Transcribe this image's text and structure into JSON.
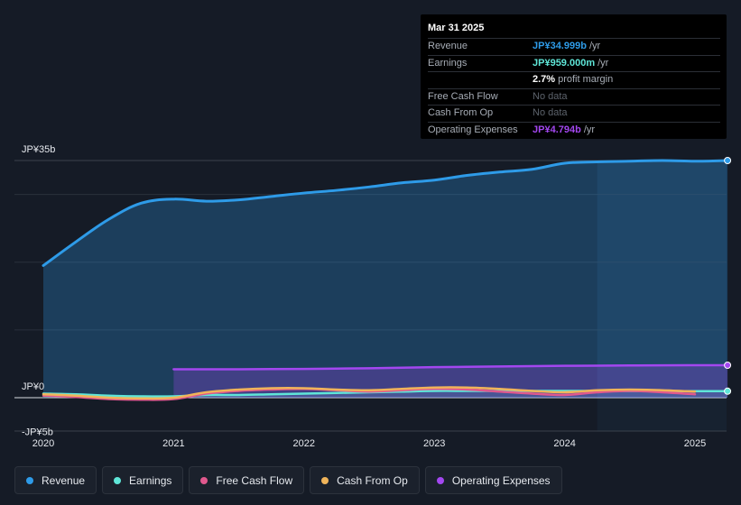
{
  "colors": {
    "background": "#151b26",
    "revenue": "#2e9be8",
    "earnings": "#5fe6d8",
    "free_cash_flow": "#e0588d",
    "cash_from_op": "#f0b45a",
    "operating_expenses": "#a347f0",
    "grid": "#2a313c",
    "zero_line": "#d9dde3"
  },
  "tooltip": {
    "date": "Mar 31 2025",
    "rows": [
      {
        "label": "Revenue",
        "value": "JP¥34.999b",
        "unit": "/yr",
        "color": "#2e9be8"
      },
      {
        "label": "Earnings",
        "value": "JP¥959.000m",
        "unit": "/yr",
        "color": "#5fe6d8"
      },
      {
        "label": "",
        "value": "2.7%",
        "unit": "profit margin",
        "color": "#ffffff"
      },
      {
        "label": "Free Cash Flow",
        "value": "No data",
        "unit": "",
        "color": ""
      },
      {
        "label": "Cash From Op",
        "value": "No data",
        "unit": "",
        "color": ""
      },
      {
        "label": "Operating Expenses",
        "value": "JP¥4.794b",
        "unit": "/yr",
        "color": "#a347f0"
      }
    ]
  },
  "legend": [
    {
      "label": "Revenue",
      "color": "#2e9be8",
      "icon": "revenue-dot-icon"
    },
    {
      "label": "Earnings",
      "color": "#5fe6d8",
      "icon": "earnings-dot-icon"
    },
    {
      "label": "Free Cash Flow",
      "color": "#e0588d",
      "icon": "free-cash-flow-dot-icon"
    },
    {
      "label": "Cash From Op",
      "color": "#f0b45a",
      "icon": "cash-from-op-dot-icon"
    },
    {
      "label": "Operating Expenses",
      "color": "#a347f0",
      "icon": "operating-expenses-dot-icon"
    }
  ],
  "chart_data": {
    "type": "area",
    "ylim": [
      -5,
      35
    ],
    "xlim": [
      2019.8,
      2025.25
    ],
    "y_tick_labels": [
      {
        "value": 35,
        "label": "JP¥35b"
      },
      {
        "value": 0,
        "label": "JP¥0"
      },
      {
        "value": -5,
        "label": "-JP¥5b"
      }
    ],
    "x_tick_labels": [
      {
        "value": 2020,
        "label": "2020"
      },
      {
        "value": 2021,
        "label": "2021"
      },
      {
        "value": 2022,
        "label": "2022"
      },
      {
        "value": 2023,
        "label": "2023"
      },
      {
        "value": 2024,
        "label": "2024"
      },
      {
        "value": 2025,
        "label": "2025"
      }
    ],
    "highlight_from": 2024.25,
    "grid": true,
    "series": [
      {
        "name": "Revenue",
        "key": "revenue",
        "fill": true,
        "end_marker": true,
        "points": [
          [
            2020.0,
            19.5
          ],
          [
            2020.25,
            23.0
          ],
          [
            2020.5,
            26.3
          ],
          [
            2020.75,
            28.7
          ],
          [
            2021.0,
            29.3
          ],
          [
            2021.25,
            29.0
          ],
          [
            2021.5,
            29.2
          ],
          [
            2021.75,
            29.7
          ],
          [
            2022.0,
            30.2
          ],
          [
            2022.25,
            30.6
          ],
          [
            2022.5,
            31.1
          ],
          [
            2022.75,
            31.7
          ],
          [
            2023.0,
            32.1
          ],
          [
            2023.25,
            32.8
          ],
          [
            2023.5,
            33.3
          ],
          [
            2023.75,
            33.7
          ],
          [
            2024.0,
            34.6
          ],
          [
            2024.25,
            34.8
          ],
          [
            2024.5,
            34.9
          ],
          [
            2024.75,
            35.0
          ],
          [
            2025.0,
            34.9
          ],
          [
            2025.25,
            35.0
          ]
        ]
      },
      {
        "name": "Earnings",
        "key": "earnings",
        "fill": true,
        "end_marker": true,
        "points": [
          [
            2020.0,
            0.6
          ],
          [
            2020.25,
            0.5
          ],
          [
            2020.5,
            0.3
          ],
          [
            2020.75,
            0.2
          ],
          [
            2021.0,
            0.2
          ],
          [
            2021.25,
            0.4
          ],
          [
            2021.5,
            0.4
          ],
          [
            2021.75,
            0.5
          ],
          [
            2022.0,
            0.6
          ],
          [
            2022.25,
            0.7
          ],
          [
            2022.5,
            0.8
          ],
          [
            2022.75,
            0.9
          ],
          [
            2023.0,
            1.0
          ],
          [
            2023.25,
            1.0
          ],
          [
            2023.5,
            1.0
          ],
          [
            2023.75,
            1.0
          ],
          [
            2024.0,
            1.0
          ],
          [
            2024.25,
            1.0
          ],
          [
            2024.5,
            0.98
          ],
          [
            2024.75,
            0.97
          ],
          [
            2025.0,
            0.96
          ],
          [
            2025.25,
            0.96
          ]
        ]
      },
      {
        "name": "Free Cash Flow",
        "key": "free_cash_flow",
        "fill": false,
        "end_marker": false,
        "points": [
          [
            2020.0,
            0.3
          ],
          [
            2020.25,
            0.1
          ],
          [
            2020.5,
            -0.2
          ],
          [
            2020.75,
            -0.3
          ],
          [
            2021.0,
            -0.2
          ],
          [
            2021.25,
            0.6
          ],
          [
            2021.5,
            1.0
          ],
          [
            2021.75,
            1.2
          ],
          [
            2022.0,
            1.3
          ],
          [
            2022.25,
            1.1
          ],
          [
            2022.5,
            0.9
          ],
          [
            2022.75,
            1.1
          ],
          [
            2023.0,
            1.3
          ],
          [
            2023.25,
            1.2
          ],
          [
            2023.5,
            0.9
          ],
          [
            2023.75,
            0.6
          ],
          [
            2024.0,
            0.4
          ],
          [
            2024.25,
            0.8
          ],
          [
            2024.5,
            1.0
          ],
          [
            2024.75,
            0.8
          ],
          [
            2025.0,
            0.5
          ]
        ]
      },
      {
        "name": "Cash From Op",
        "key": "cash_from_op",
        "fill": false,
        "end_marker": false,
        "points": [
          [
            2020.0,
            0.5
          ],
          [
            2020.25,
            0.3
          ],
          [
            2020.5,
            0.0
          ],
          [
            2020.75,
            -0.1
          ],
          [
            2021.0,
            0.0
          ],
          [
            2021.25,
            0.8
          ],
          [
            2021.5,
            1.2
          ],
          [
            2021.75,
            1.4
          ],
          [
            2022.0,
            1.4
          ],
          [
            2022.25,
            1.2
          ],
          [
            2022.5,
            1.1
          ],
          [
            2022.75,
            1.3
          ],
          [
            2023.0,
            1.5
          ],
          [
            2023.25,
            1.5
          ],
          [
            2023.5,
            1.3
          ],
          [
            2023.75,
            1.0
          ],
          [
            2024.0,
            0.8
          ],
          [
            2024.25,
            1.1
          ],
          [
            2024.5,
            1.2
          ],
          [
            2024.75,
            1.1
          ],
          [
            2025.0,
            0.9
          ]
        ]
      },
      {
        "name": "Operating Expenses",
        "key": "operating_expenses",
        "fill": true,
        "end_marker": true,
        "points": [
          [
            2021.0,
            4.2
          ],
          [
            2021.5,
            4.2
          ],
          [
            2022.0,
            4.25
          ],
          [
            2022.5,
            4.35
          ],
          [
            2023.0,
            4.5
          ],
          [
            2023.5,
            4.6
          ],
          [
            2024.0,
            4.7
          ],
          [
            2024.5,
            4.75
          ],
          [
            2025.0,
            4.79
          ],
          [
            2025.25,
            4.79
          ]
        ]
      }
    ]
  }
}
